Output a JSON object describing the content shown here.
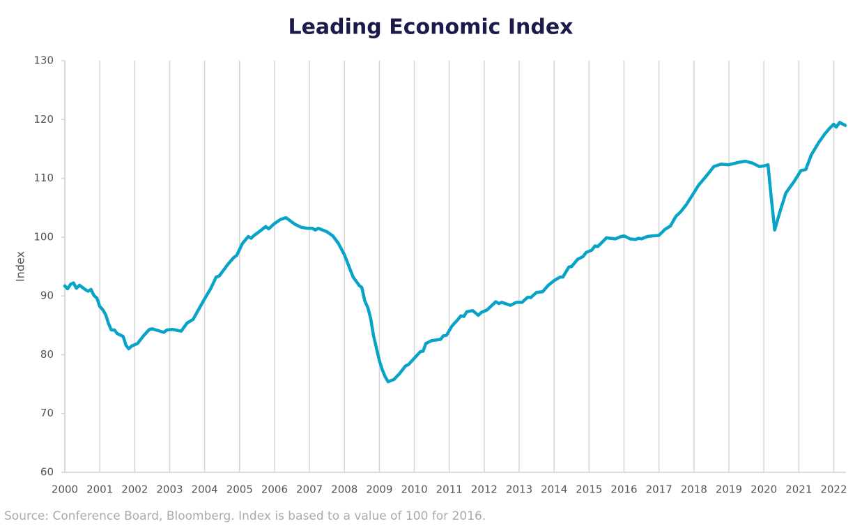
{
  "chart_data": {
    "type": "line",
    "title": "Leading Economic Index",
    "y_label": "Index",
    "source": "Source: Conference Board, Bloomberg. Index is based to a value of 100 for 2016.",
    "xlim": [
      2000,
      2022.35
    ],
    "xticks": [
      2000,
      2001,
      2002,
      2003,
      2004,
      2005,
      2006,
      2007,
      2008,
      2009,
      2010,
      2011,
      2012,
      2013,
      2014,
      2015,
      2016,
      2017,
      2018,
      2019,
      2020,
      2021,
      2022
    ],
    "ylim": [
      60,
      130
    ],
    "yticks": [
      60,
      70,
      80,
      90,
      100,
      110,
      120,
      130
    ],
    "grid": true,
    "x": [
      2000.0,
      2000.08,
      2000.17,
      2000.25,
      2000.33,
      2000.42,
      2000.58,
      2000.67,
      2000.75,
      2000.83,
      2000.92,
      2001.0,
      2001.08,
      2001.17,
      2001.25,
      2001.33,
      2001.42,
      2001.5,
      2001.67,
      2001.75,
      2001.83,
      2001.92,
      2002.08,
      2002.25,
      2002.42,
      2002.5,
      2002.67,
      2002.83,
      2002.92,
      2003.08,
      2003.33,
      2003.5,
      2003.67,
      2003.83,
      2004.0,
      2004.17,
      2004.33,
      2004.42,
      2004.67,
      2004.83,
      2004.92,
      2005.08,
      2005.25,
      2005.33,
      2005.42,
      2005.58,
      2005.75,
      2005.83,
      2006.0,
      2006.17,
      2006.33,
      2006.58,
      2006.75,
      2006.92,
      2007.08,
      2007.17,
      2007.25,
      2007.5,
      2007.67,
      2007.83,
      2008.0,
      2008.17,
      2008.25,
      2008.42,
      2008.5,
      2008.58,
      2008.67,
      2008.75,
      2008.83,
      2008.92,
      2009.0,
      2009.08,
      2009.17,
      2009.25,
      2009.42,
      2009.58,
      2009.75,
      2009.83,
      2010.0,
      2010.17,
      2010.25,
      2010.33,
      2010.5,
      2010.75,
      2010.83,
      2010.92,
      2011.08,
      2011.25,
      2011.33,
      2011.42,
      2011.5,
      2011.67,
      2011.83,
      2011.92,
      2012.08,
      2012.33,
      2012.42,
      2012.5,
      2012.75,
      2012.92,
      2013.08,
      2013.25,
      2013.33,
      2013.5,
      2013.67,
      2013.83,
      2014.0,
      2014.17,
      2014.25,
      2014.42,
      2014.5,
      2014.67,
      2014.83,
      2014.92,
      2015.08,
      2015.17,
      2015.25,
      2015.42,
      2015.5,
      2015.58,
      2015.75,
      2015.92,
      2016.0,
      2016.17,
      2016.33,
      2016.42,
      2016.5,
      2016.67,
      2016.83,
      2017.0,
      2017.17,
      2017.33,
      2017.48,
      2017.62,
      2017.78,
      2017.92,
      2018.13,
      2018.37,
      2018.57,
      2018.77,
      2019.0,
      2019.27,
      2019.47,
      2019.67,
      2019.87,
      2020.0,
      2020.12,
      2020.19,
      2020.31,
      2020.47,
      2020.63,
      2020.87,
      2021.06,
      2021.2,
      2021.36,
      2021.56,
      2021.74,
      2021.88,
      2022.0,
      2022.07,
      2022.17,
      2022.33
    ],
    "series": [
      {
        "name": "Leading Economic Index",
        "color": "#0aa3c8",
        "values": [
          91.7,
          91.2,
          92.0,
          92.2,
          91.3,
          91.8,
          91.1,
          90.8,
          91.1,
          90.1,
          89.6,
          88.2,
          87.7,
          86.8,
          85.3,
          84.2,
          84.2,
          83.6,
          83.1,
          81.6,
          81.0,
          81.5,
          81.9,
          83.2,
          84.3,
          84.4,
          84.1,
          83.8,
          84.2,
          84.3,
          84.0,
          85.4,
          86.0,
          87.7,
          89.5,
          91.2,
          93.2,
          93.4,
          95.4,
          96.5,
          96.9,
          98.9,
          100.1,
          99.8,
          100.3,
          101.0,
          101.8,
          101.4,
          102.3,
          103.0,
          103.3,
          102.2,
          101.7,
          101.5,
          101.5,
          101.2,
          101.5,
          100.9,
          100.2,
          98.9,
          97.0,
          94.4,
          93.2,
          91.8,
          91.4,
          89.2,
          88.0,
          86.2,
          83.3,
          81.0,
          79.0,
          77.5,
          76.2,
          75.4,
          75.8,
          76.8,
          78.1,
          78.3,
          79.4,
          80.5,
          80.6,
          81.9,
          82.4,
          82.6,
          83.2,
          83.3,
          84.9,
          86.0,
          86.6,
          86.5,
          87.3,
          87.5,
          86.7,
          87.2,
          87.6,
          89.0,
          88.7,
          88.9,
          88.4,
          88.9,
          88.9,
          89.8,
          89.7,
          90.6,
          90.7,
          91.8,
          92.6,
          93.2,
          93.2,
          94.9,
          95.0,
          96.2,
          96.7,
          97.4,
          97.8,
          98.5,
          98.4,
          99.4,
          99.9,
          99.8,
          99.7,
          100.1,
          100.2,
          99.7,
          99.6,
          99.8,
          99.7,
          100.1,
          100.2,
          100.3,
          101.3,
          101.9,
          103.5,
          104.3,
          105.5,
          106.8,
          108.8,
          110.5,
          112.0,
          112.4,
          112.3,
          112.7,
          112.9,
          112.6,
          112.0,
          112.1,
          112.3,
          108.0,
          101.2,
          104.5,
          107.5,
          109.5,
          111.3,
          111.5,
          114.0,
          116.0,
          117.5,
          118.5,
          119.2,
          118.7,
          119.5,
          119.0
        ]
      }
    ]
  }
}
